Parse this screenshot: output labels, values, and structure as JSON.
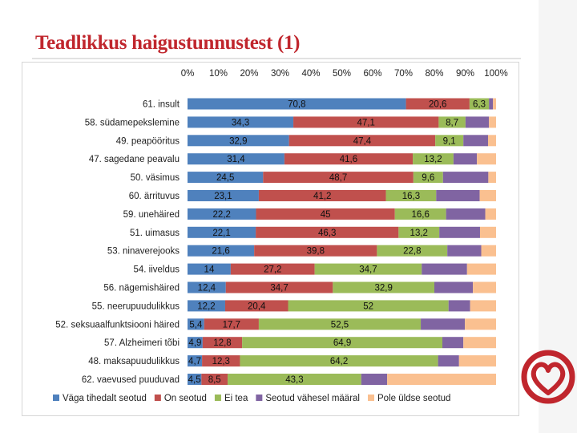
{
  "title": "Teadlikkus haigustunnustest (1)",
  "colors": {
    "title": "#c0262d",
    "logo": "#c0262d",
    "band": "#f5f5f5"
  },
  "chart_data": {
    "type": "bar",
    "orientation": "horizontal",
    "stacked": "percent",
    "title": "",
    "xlim": [
      0,
      100
    ],
    "ticks": [
      "0%",
      "10%",
      "20%",
      "30%",
      "40%",
      "50%",
      "60%",
      "70%",
      "80%",
      "90%",
      "100%"
    ],
    "legend_position": "bottom",
    "categories": [
      "61. insult",
      "58. südamepekslemine",
      "49. peapööritus",
      "47. sagedane peavalu",
      "50. väsimus",
      "60. ärrituvus",
      "59. unehäired",
      "51. uimasus",
      "53. ninaverejooks",
      "54. iiveldus",
      "56. nägemishäired",
      "55. neerupuudulikkus",
      "52. seksuaalfunktsiooni häired",
      "57. Alzheimeri tõbi",
      "48. maksapuudulikkus",
      "62. vaevused puuduvad"
    ],
    "series": [
      {
        "name": "Väga tihedalt seotud",
        "color": "#4f81bd",
        "values": [
          70.8,
          34.3,
          32.9,
          31.4,
          24.5,
          23.1,
          22.2,
          22.1,
          21.6,
          14,
          12.4,
          12.2,
          5.4,
          4.9,
          4.7,
          4.5
        ],
        "labels": [
          "70,8",
          "34,3",
          "32,9",
          "31,4",
          "24,5",
          "23,1",
          "22,2",
          "22,1",
          "21,6",
          "14",
          "12,4",
          "12,2",
          "5,4",
          "4,9",
          "4,7",
          "4,5"
        ]
      },
      {
        "name": "On seotud",
        "color": "#c0504d",
        "values": [
          20.6,
          47.1,
          47.4,
          41.6,
          48.7,
          41.2,
          45,
          46.3,
          39.8,
          27.2,
          34.7,
          20.4,
          17.7,
          12.8,
          12.3,
          8.5
        ],
        "labels": [
          "20,6",
          "47,1",
          "47,4",
          "41,6",
          "48,7",
          "41,2",
          "45",
          "46,3",
          "39,8",
          "27,2",
          "34,7",
          "20,4",
          "17,7",
          "12,8",
          "12,3",
          "8,5"
        ]
      },
      {
        "name": "Ei tea",
        "color": "#9bbb59",
        "values": [
          6.3,
          8.7,
          9.1,
          13.2,
          9.6,
          16.3,
          16.6,
          13.2,
          22.8,
          34.7,
          32.9,
          52,
          52.5,
          64.9,
          64.2,
          43.3
        ],
        "labels": [
          "6,3",
          "8,7",
          "9,1",
          "13,2",
          "9,6",
          "16,3",
          "16,6",
          "13,2",
          "22,8",
          "34,7",
          "32,9",
          "52",
          "52,5",
          "64,9",
          "64,2",
          "43,3"
        ]
      },
      {
        "name": "Seotud vähesel määral",
        "color": "#8064a2",
        "values": [
          1.3,
          7.6,
          8.0,
          7.6,
          14.7,
          14.1,
          12.7,
          13.2,
          11.0,
          14.7,
          12.5,
          7.0,
          14.3,
          6.8,
          6.8,
          8.4
        ],
        "labels": []
      },
      {
        "name": "Pole üldse seotud",
        "color": "#fac090",
        "values": [
          1.0,
          2.3,
          2.6,
          6.2,
          2.5,
          5.3,
          3.5,
          5.2,
          4.8,
          9.4,
          7.5,
          8.4,
          10.1,
          10.6,
          12.0,
          35.3
        ],
        "labels": []
      }
    ]
  }
}
